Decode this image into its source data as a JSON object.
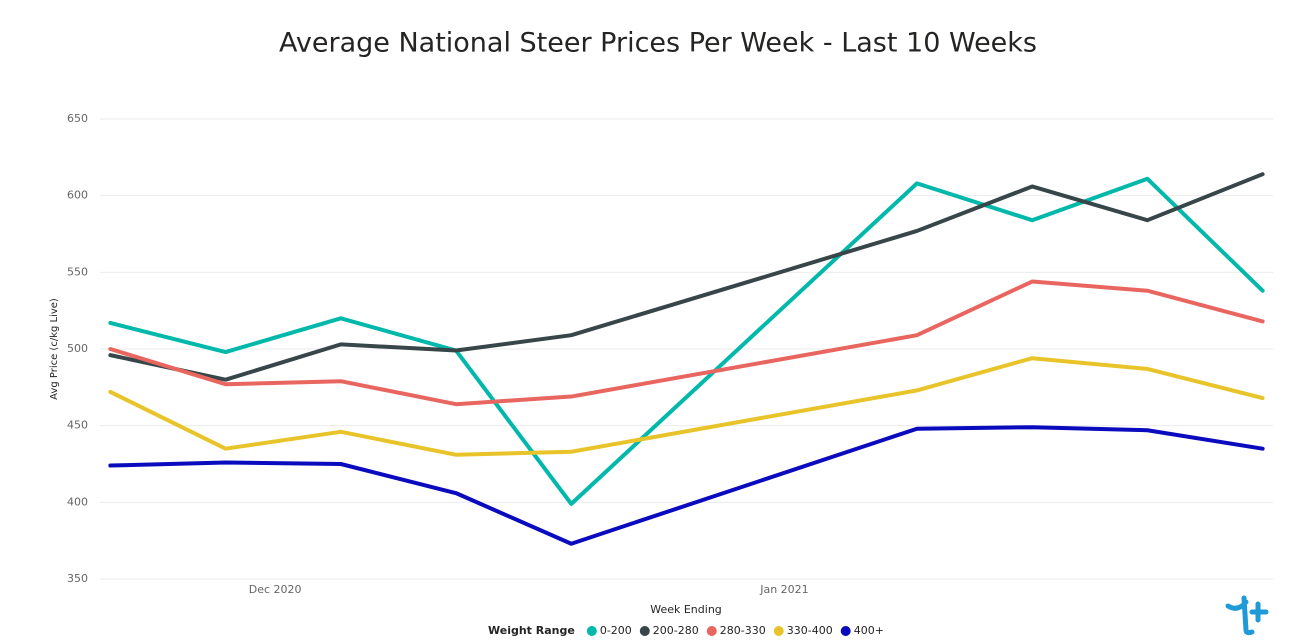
{
  "chart_data": {
    "type": "line",
    "title": "Average National Steer Prices Per Week - Last 10 Weeks",
    "x_label": "Week Ending",
    "y_label": "Avg Price (c/kg Live)",
    "legend_title": "Weight Range",
    "legend": "bottom",
    "grid": true,
    "x": [
      0,
      1,
      2,
      3,
      4,
      7,
      8,
      9,
      10
    ],
    "xlim": [
      -0.09,
      10.09
    ],
    "xticks": [
      {
        "value": 1.43,
        "label": "Dec 2020"
      },
      {
        "value": 5.85,
        "label": "Jan 2021"
      }
    ],
    "ylim": [
      350,
      650
    ],
    "yticks": [
      350,
      400,
      450,
      500,
      550,
      600,
      650
    ],
    "series": [
      {
        "name": "0-200",
        "color": "#01b8aa",
        "values": [
          517,
          498,
          520,
          499,
          399,
          608,
          584,
          611,
          538
        ]
      },
      {
        "name": "200-280",
        "color": "#374649",
        "values": [
          496,
          480,
          503,
          499,
          509,
          577,
          606,
          584,
          614
        ]
      },
      {
        "name": "280-330",
        "color": "#e8665f",
        "values": [
          500,
          477,
          479,
          464,
          469,
          509,
          544,
          538,
          518
        ]
      },
      {
        "name": "330-400",
        "color": "#e8c42a",
        "values": [
          472,
          435,
          446,
          431,
          433,
          473,
          494,
          487,
          468
        ]
      },
      {
        "name": "400+",
        "color": "#0a0abf",
        "values": [
          424,
          426,
          425,
          406,
          373,
          448,
          449,
          447,
          435
        ]
      }
    ]
  }
}
